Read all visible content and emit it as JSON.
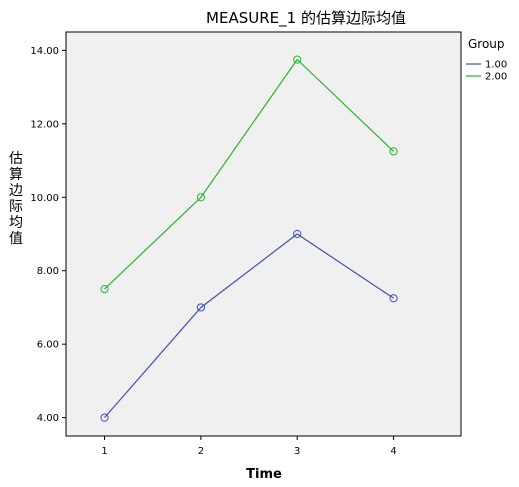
{
  "chart_data": {
    "type": "line",
    "title": "MEASURE_1 的估算边际均值",
    "xlabel": "Time",
    "ylabel": "估算边际均值",
    "x": [
      1,
      2,
      3,
      4
    ],
    "x_tick_labels": [
      "1",
      "2",
      "3",
      "4"
    ],
    "ylim": [
      3.5,
      14.5
    ],
    "y_ticks": [
      4,
      6,
      8,
      10,
      12,
      14
    ],
    "y_tick_labels": [
      "4.00",
      "6.00",
      "8.00",
      "10.00",
      "12.00",
      "14.00"
    ],
    "grid": false,
    "legend": {
      "title": "Group",
      "placement": "right"
    },
    "series": [
      {
        "name": "1.00",
        "color": "#3f51b1",
        "values": [
          4.0,
          7.0,
          9.0,
          7.25
        ]
      },
      {
        "name": "2.00",
        "color": "#29b42d",
        "values": [
          7.5,
          10.0,
          13.75,
          11.25
        ]
      }
    ],
    "plot_background": "#f0f0f0"
  }
}
